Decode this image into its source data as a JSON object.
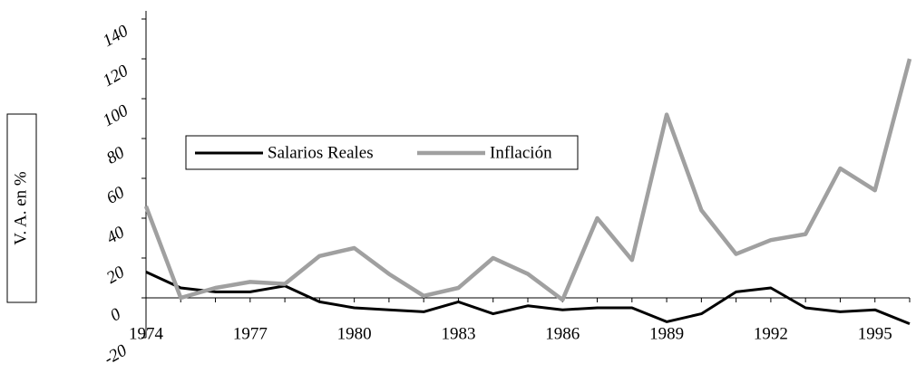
{
  "chart_data": {
    "type": "line",
    "y_label": "V. A. en %",
    "categories": [
      "1974",
      null,
      null,
      "1977",
      null,
      null,
      "1980",
      null,
      null,
      "1983",
      null,
      null,
      "1986",
      null,
      null,
      "1989",
      null,
      null,
      "1992",
      null,
      null,
      "1995",
      null
    ],
    "series": [
      {
        "name": "Salarios Reales",
        "color": "#000000",
        "values": [
          13,
          5,
          3,
          3,
          6,
          -2,
          -5,
          -6,
          -7,
          -2,
          -8,
          -4,
          -6,
          -5,
          -5,
          -12,
          -8,
          3,
          5,
          -5,
          -7,
          -6,
          -13
        ]
      },
      {
        "name": "Inflación",
        "color": "#a0a0a0",
        "values": [
          46,
          0,
          5,
          8,
          7,
          21,
          25,
          12,
          1,
          5,
          20,
          12,
          -1,
          40,
          19,
          92,
          44,
          22,
          29,
          32,
          65,
          54,
          120
        ]
      }
    ],
    "ylim": [
      -20,
      140
    ],
    "yticks": [
      -20,
      0,
      20,
      40,
      60,
      80,
      100,
      120,
      140
    ]
  }
}
